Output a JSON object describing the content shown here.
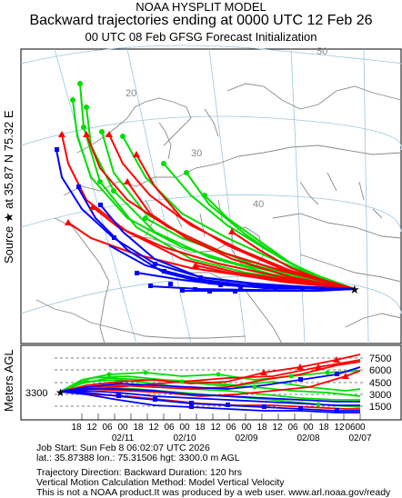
{
  "header": {
    "model": "NOAA HYSPLIT MODEL",
    "title": "Backward trajectories ending at 0000 UTC 12 Feb 26",
    "subtitle": "00 UTC 08 Feb    GFSG  Forecast Initialization"
  },
  "source_label": {
    "prefix": "Source",
    "star": "★",
    "at": "at",
    "lat": "35.87 N",
    "lon": "75.32 E"
  },
  "map": {
    "lat_labels": [
      "20",
      "30",
      "40",
      "50"
    ],
    "source_marker": "star-icon"
  },
  "height_panel": {
    "ylabel": "Meters AGL",
    "start_height": "3300",
    "y_ticks": [
      "7500",
      "6000",
      "4500",
      "3000",
      "1500"
    ],
    "x_hour_ticks": [
      "18",
      "12",
      "06",
      "00",
      "18",
      "12",
      "06",
      "00",
      "18",
      "12",
      "06",
      "00",
      "18",
      "12",
      "06",
      "00",
      "18",
      "12",
      "06",
      "00"
    ],
    "x_date_ticks": [
      "02/11",
      "02/10",
      "02/09",
      "02/08",
      "02/07"
    ]
  },
  "footer": {
    "line1": "Job Start: Sun Feb  8 06:02:07 UTC 2026",
    "line2": "lat.: 35.87388   lon.: 75.31506   hgt: 3300.0 m AGL",
    "line3": "Trajectory Direction: Backward      Duration: 120 hrs",
    "line4": "Vertical Motion Calculation Method: Model Vertical Velocity",
    "line5": "This is not a NOAA product.It was produced by a web user. www.arl.noaa.gov/ready"
  },
  "colors": {
    "red": "#ff0000",
    "blue": "#0000ff",
    "green": "#00dd00",
    "map_lines": "#8a8a8a",
    "grid": "#9ec6dc"
  }
}
